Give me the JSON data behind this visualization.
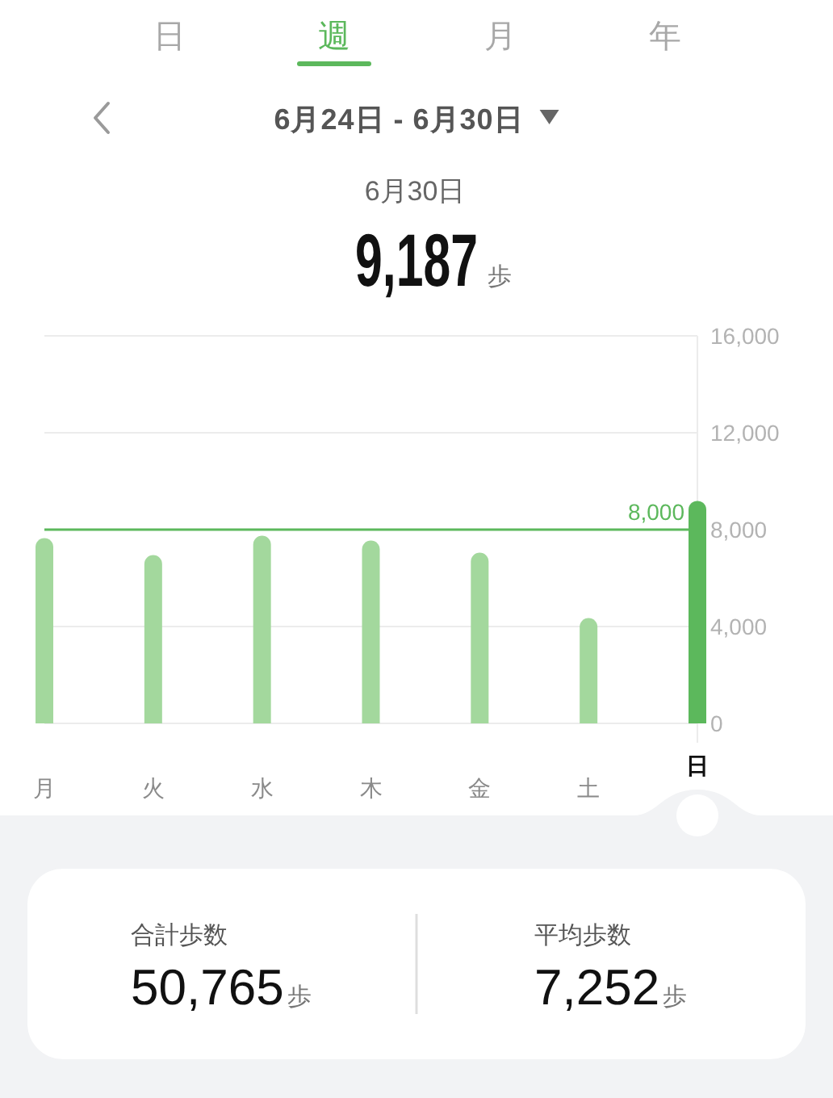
{
  "chart_data": {
    "type": "bar",
    "title": "6月24日 - 6月30日",
    "categories": [
      "月",
      "火",
      "水",
      "木",
      "金",
      "土",
      "日"
    ],
    "values": [
      7650,
      6950,
      7750,
      7550,
      7050,
      4350,
      9187
    ],
    "colors": [
      "#a3d89d",
      "#a3d89d",
      "#a3d89d",
      "#a3d89d",
      "#a3d89d",
      "#a3d89d",
      "#5cb85c"
    ],
    "ylim": [
      0,
      16000
    ],
    "yticks": [
      0,
      {
        "value": 4000,
        "label": "4,000"
      },
      {
        "value": 8000,
        "label": "8,000"
      },
      {
        "value": 12000,
        "label": "12,000"
      },
      {
        "value": 16000,
        "label": "16,000"
      }
    ],
    "grid": "y",
    "ref_lines": [
      {
        "axis": "y",
        "value": 8000,
        "label": "8,000",
        "color": "#5cb85c"
      }
    ],
    "annotations": [
      "日",
      "週",
      "月",
      "年",
      "6月30日",
      "9,187",
      "歩",
      "合計歩数",
      "50,765",
      "歩",
      "平均歩数",
      "7,252",
      "歩"
    ]
  }
}
